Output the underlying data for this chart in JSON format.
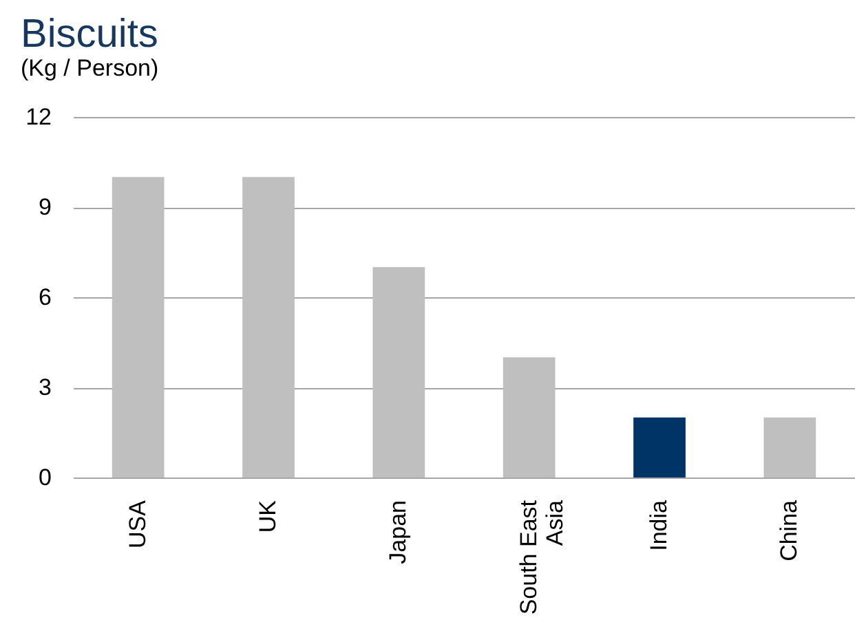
{
  "chart_data": {
    "type": "bar",
    "title": "Biscuits",
    "subtitle": "(Kg / Person)",
    "categories": [
      "USA",
      "UK",
      "Japan",
      "South East Asia",
      "India",
      "China"
    ],
    "values": [
      10,
      10,
      7,
      4,
      2,
      2
    ],
    "colors": [
      "#bfbfbf",
      "#bfbfbf",
      "#bfbfbf",
      "#bfbfbf",
      "#003366",
      "#bfbfbf"
    ],
    "ylim": [
      0,
      12
    ],
    "yticks": [
      0,
      3,
      6,
      9,
      12
    ],
    "grid": "y"
  }
}
